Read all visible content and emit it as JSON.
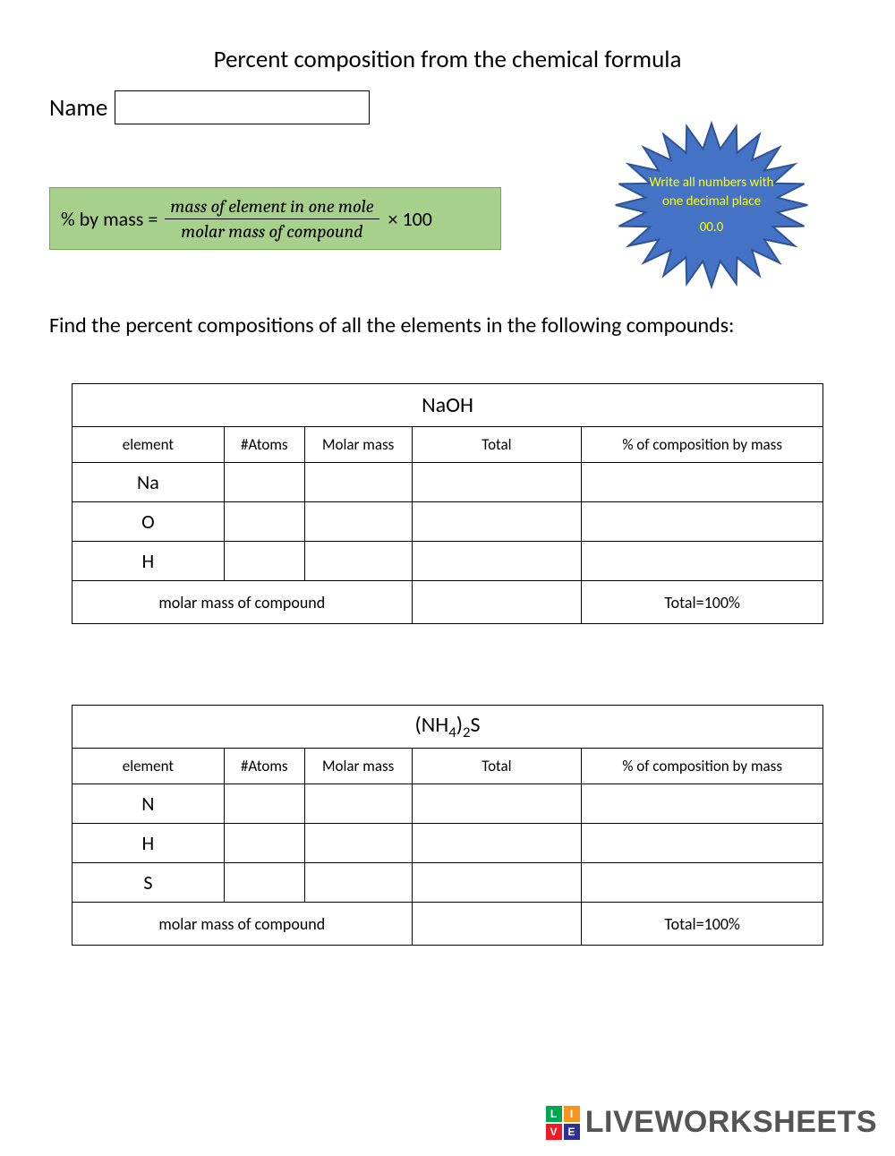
{
  "title": "Percent composition from the chemical formula",
  "name_label": "Name",
  "formula": {
    "lhs": "% by mass =",
    "numerator": "mass of element in one mole",
    "denominator": "molar mass of compound",
    "suffix": "× 100",
    "bg_color": "#a8d08d",
    "border_color": "#70ad47"
  },
  "starburst": {
    "line1": "Write all numbers with",
    "line2": "one decimal place",
    "line3": "00.0",
    "fill": "#4472c4",
    "stroke": "#2f5597",
    "text_color": "#ffff00"
  },
  "instruction": "Find the percent compositions of all the elements in the following compounds:",
  "column_headers": {
    "element": "element",
    "atoms": "#Atoms",
    "molar": "Molar mass",
    "total": "Total",
    "percent": "%  of composition by mass"
  },
  "footer": {
    "molar_label": "molar mass of compound",
    "total_label": "Total=100%"
  },
  "tables": [
    {
      "compound_html": "NaOH",
      "elements": [
        "Na",
        "O",
        "H"
      ]
    },
    {
      "compound_html": "(NH<sub>4</sub>)<sub>2</sub>S",
      "elements": [
        "N",
        "H",
        "S"
      ]
    }
  ],
  "watermark": {
    "text": "LIVEWORKSHEETS",
    "logo_colors": [
      "#00a651",
      "#f7941d",
      "#ed1c24",
      "#2e3192"
    ],
    "logo_letters": [
      "L",
      "I",
      "V",
      "E"
    ]
  }
}
